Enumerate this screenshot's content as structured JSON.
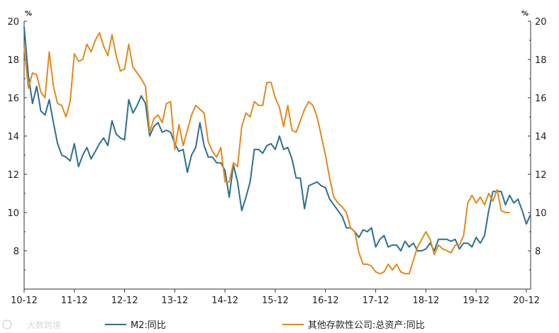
{
  "chart_data": {
    "type": "line",
    "title": "",
    "left_unit": "%",
    "right_unit": "%",
    "ylim": [
      6,
      20
    ],
    "yticks": [
      8,
      10,
      12,
      14,
      16,
      18,
      20
    ],
    "xlim": [
      "2010-12",
      "2021-03"
    ],
    "xticks": [
      "10-12",
      "11-12",
      "12-12",
      "13-12",
      "14-12",
      "15-12",
      "16-12",
      "17-12",
      "18-12",
      "19-12",
      "20-12"
    ],
    "x_start": "2010-12",
    "series": [
      {
        "name": "M2:同比",
        "color": "#2e6f8e",
        "values": [
          19.7,
          17.2,
          15.7,
          16.6,
          15.3,
          15.1,
          15.9,
          14.7,
          13.6,
          13.0,
          12.9,
          12.7,
          13.6,
          12.4,
          13.0,
          13.4,
          12.8,
          13.2,
          13.6,
          13.9,
          13.5,
          14.8,
          14.1,
          13.9,
          13.8,
          15.9,
          15.2,
          15.6,
          16.1,
          15.7,
          14.0,
          14.5,
          14.7,
          14.2,
          14.3,
          14.2,
          13.6,
          13.2,
          13.3,
          12.1,
          13.0,
          13.4,
          14.7,
          13.5,
          12.9,
          12.9,
          12.6,
          12.6,
          12.2,
          10.8,
          12.5,
          11.6,
          10.1,
          10.8,
          11.6,
          13.3,
          13.3,
          13.1,
          13.5,
          13.6,
          13.3,
          14.0,
          13.3,
          13.4,
          12.8,
          11.8,
          11.8,
          10.2,
          11.4,
          11.5,
          11.6,
          11.4,
          11.3,
          10.7,
          10.4,
          10.1,
          9.8,
          9.2,
          9.2,
          9.0,
          8.7,
          9.1,
          9.0,
          9.2,
          8.2,
          8.6,
          8.8,
          8.2,
          8.3,
          8.3,
          8.0,
          8.5,
          8.2,
          8.4,
          8.0,
          8.0,
          8.1,
          8.4,
          8.0,
          8.6,
          8.6,
          8.6,
          8.5,
          8.6,
          8.1,
          8.4,
          8.4,
          8.2,
          8.7,
          8.4,
          8.8,
          10.1,
          11.1,
          11.1,
          11.1,
          10.4,
          10.9,
          10.5,
          10.7,
          10.1,
          9.4,
          9.9
        ]
      },
      {
        "name": "其他存款性公司:总资产:同比",
        "color": "#e08a1e",
        "values": [
          18.7,
          16.5,
          17.3,
          17.2,
          16.3,
          16.0,
          18.4,
          16.6,
          15.7,
          15.6,
          15.0,
          15.8,
          18.3,
          17.9,
          18.0,
          18.8,
          18.4,
          19.0,
          19.4,
          18.7,
          18.2,
          19.3,
          18.2,
          17.4,
          17.5,
          18.8,
          17.6,
          17.3,
          17.0,
          16.6,
          14.2,
          14.9,
          15.1,
          14.7,
          15.7,
          15.8,
          13.3,
          14.6,
          13.5,
          14.3,
          15.1,
          15.6,
          15.4,
          15.2,
          13.7,
          13.2,
          12.9,
          13.4,
          11.6,
          11.6,
          12.6,
          12.4,
          14.5,
          15.2,
          15.0,
          15.8,
          15.6,
          15.6,
          16.8,
          16.8,
          16.0,
          15.5,
          14.5,
          15.6,
          14.3,
          14.2,
          14.8,
          15.4,
          15.8,
          15.6,
          15.0,
          14.0,
          13.0,
          11.8,
          10.8,
          10.5,
          10.3,
          10.0,
          9.2,
          9.0,
          7.9,
          7.3,
          7.3,
          7.2,
          6.9,
          6.8,
          6.9,
          7.3,
          7.0,
          7.3,
          6.9,
          6.8,
          6.8,
          7.5,
          8.2,
          8.6,
          9.0,
          8.6,
          7.8,
          8.3,
          8.1,
          8.0,
          7.9,
          8.3,
          8.3,
          8.8,
          10.5,
          10.9,
          10.5,
          10.8,
          10.4,
          11.0,
          10.6,
          11.2,
          10.1,
          10.0,
          10.0
        ]
      }
    ]
  },
  "watermark": "大数跨境"
}
